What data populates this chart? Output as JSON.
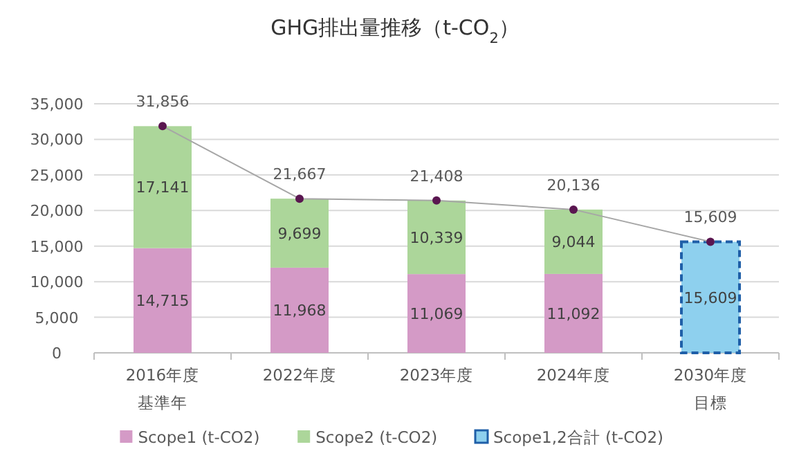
{
  "chart_data": {
    "type": "bar",
    "title": "GHG排出量推移（t-CO$_{2}$）",
    "categories": [
      "2016年度基準年",
      "2022年度",
      "2023年度",
      "2024年度",
      "2030年度目標"
    ],
    "stacked": true,
    "grid": "y",
    "legend": "bottom",
    "ylim": [
      0,
      35000
    ],
    "yticks": [
      {
        "value": 0,
        "label": "0"
      },
      {
        "value": 5000,
        "label": "5,000"
      },
      {
        "value": 10000,
        "label": "10,000"
      },
      {
        "value": 15000,
        "label": "15,000"
      },
      {
        "value": 20000,
        "label": "20,000"
      },
      {
        "value": 25000,
        "label": "25,000"
      },
      {
        "value": 30000,
        "label": "30,000"
      },
      {
        "value": 35000,
        "label": "35,000"
      }
    ],
    "series": [
      {
        "name": "Scope1 (t-CO2)",
        "color": "#d49ac6",
        "values": [
          14715,
          11968,
          11069,
          11092,
          null
        ],
        "value_labels": [
          "14,715",
          "11,968",
          "11,069",
          "11,092",
          null
        ]
      },
      {
        "name": "Scope2 (t-CO2)",
        "color": "#acd69a",
        "values": [
          17141,
          9699,
          10339,
          9044,
          null
        ],
        "value_labels": [
          "17,141",
          "9,699",
          "10,339",
          "9,044",
          null
        ]
      },
      {
        "name": "Scope1,2合計 (t-CO2)",
        "color": "#8ed0ee",
        "line_style": "dashed",
        "values": [
          null,
          null,
          null,
          null,
          15609
        ],
        "value_labels": [
          null,
          null,
          null,
          null,
          "15,609"
        ]
      },
      {
        "type": "line",
        "color": "#5a1650",
        "marker": "circle",
        "values": [
          31856,
          21667,
          21408,
          20136,
          15609
        ],
        "value_labels": [
          "31,856",
          "21,667",
          "21,408",
          "20,136",
          "15,609"
        ]
      }
    ]
  }
}
